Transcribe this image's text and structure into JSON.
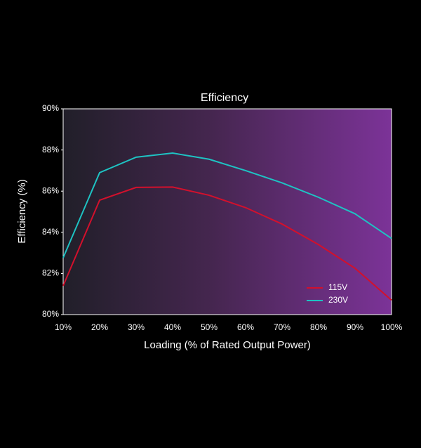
{
  "chart_data": {
    "type": "line",
    "title": "Efficiency",
    "x_label": "Loading (% of Rated Output Power)",
    "y_label": "Efficiency (%)",
    "categories": [
      "10%",
      "20%",
      "30%",
      "40%",
      "50%",
      "60%",
      "70%",
      "80%",
      "90%",
      "100%"
    ],
    "series": [
      {
        "name": "115V",
        "color": "#d3102c",
        "values": [
          81.4,
          85.56,
          86.18,
          86.2,
          85.8,
          85.2,
          84.4,
          83.4,
          82.25,
          80.7
        ]
      },
      {
        "name": "230V",
        "color": "#1ec3c3",
        "values": [
          82.76,
          86.9,
          87.65,
          87.85,
          87.55,
          87.0,
          86.4,
          85.7,
          84.9,
          83.7
        ]
      }
    ],
    "ylim": [
      80,
      90
    ],
    "yticks": [
      {
        "value": 80,
        "label": "80%"
      },
      {
        "value": 82,
        "label": "82%"
      },
      {
        "value": 84,
        "label": "84%"
      },
      {
        "value": 86,
        "label": "86%"
      },
      {
        "value": 88,
        "label": "88%"
      },
      {
        "value": 90,
        "label": "90%"
      }
    ],
    "legend": "lower right"
  }
}
